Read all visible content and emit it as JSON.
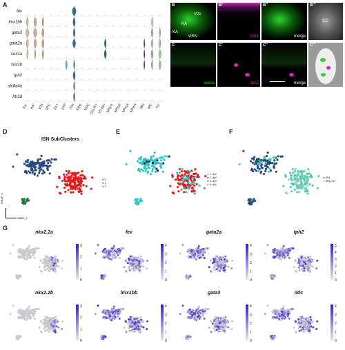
{
  "panels": {
    "A": "A",
    "B": "B",
    "B1": "B'",
    "B2": "B''",
    "B3": "B'''",
    "C": "C",
    "C1": "C'",
    "C2": "C''",
    "C3": "C'''",
    "D": "D",
    "E": "E",
    "F": "F",
    "G": "G"
  },
  "violin": {
    "genes": [
      "fev",
      "lmx1bb",
      "gata3",
      "gata2a",
      "sox1a",
      "sox1b",
      "tph2",
      "slc6a4a",
      "htr1d"
    ],
    "clusters": [
      "KA'",
      "KA\"",
      "V2s",
      "OPC",
      "Zic+",
      "LFP",
      "ISN",
      "ERG",
      "NPC",
      "GLUT+",
      "V2 dev",
      "NPro1",
      "NPro2",
      "NPro3",
      "NPro4",
      "MN",
      "MC",
      "KC"
    ]
  },
  "micro": {
    "B_labels": [
      "V2s",
      "KA",
      "KA",
      "vISN",
      "gata3"
    ],
    "B1_label": "sox1",
    "B2_label": "merge",
    "B3_labels": [
      "CC",
      "KA",
      "sox1"
    ],
    "C_label": "sox1a",
    "C1_label": "tph2",
    "C2_label": "merge",
    "C3_labels": [
      "sox1",
      "V2s",
      "ISN",
      "KA",
      "tph2"
    ]
  },
  "plotD": {
    "title": "ISN SubClusters",
    "legend": [
      "0",
      "1",
      "2"
    ],
    "axis_x": "UMAP_1",
    "axis_y": "UMAP_2"
  },
  "plotE": {
    "legend": [
      "1: dpf",
      "2: dpf",
      "3: dpf",
      "5: dpf"
    ]
  },
  "plotF": {
    "legend": [
      "ISN",
      "ISN pre"
    ]
  },
  "plotG": {
    "genes": [
      "nkx2.2a",
      "fev",
      "gata2a",
      "tph2",
      "nkx2.2b",
      "lmx1bb",
      "gata3",
      "ddc"
    ],
    "scales": [
      [
        "3",
        "2",
        "1",
        "0"
      ],
      [
        "4",
        "3",
        "2",
        "1",
        "0"
      ],
      [
        "4",
        "3",
        "2",
        "1",
        "0"
      ],
      [
        "5",
        "4",
        "3",
        "2",
        "1",
        "0"
      ],
      [
        "3",
        "2",
        "1",
        "0"
      ],
      [
        "4",
        "3",
        "2",
        "1",
        "0"
      ],
      [
        "4",
        "3",
        "2",
        "1",
        "0"
      ],
      [
        "4",
        "3",
        "2",
        "1",
        "0"
      ]
    ]
  },
  "colors": {
    "cluster0": "#2c4a7c",
    "cluster1": "#e21a1a",
    "cluster2": "#1f7a3a",
    "cyan": "#2ec7c9",
    "dark": "#1b2a4a",
    "teal": "#5bc8b0",
    "purple": "#4b2bd4",
    "grey": "#c9c9cf",
    "green": "#2fd12f",
    "magenta": "#e020c8"
  }
}
